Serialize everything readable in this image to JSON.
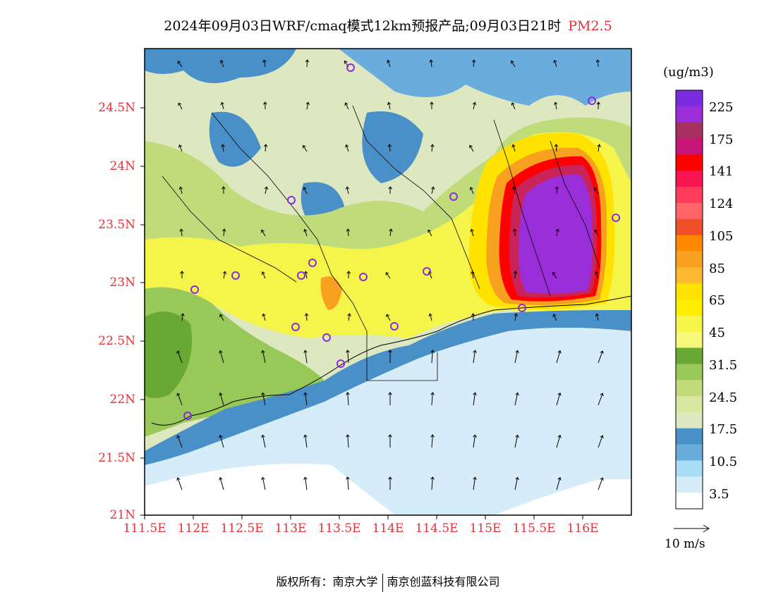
{
  "title": {
    "main": "2024年09月03日WRF/cmaq模式12km预报产品;09月03日21时",
    "variable": "PM2.5"
  },
  "map": {
    "lat_labels": [
      "24.5N",
      "24N",
      "23.5N",
      "23N",
      "22.5N",
      "22N",
      "21.5N",
      "21N"
    ],
    "lon_labels": [
      "111.5E",
      "112E",
      "112.5E",
      "113E",
      "113.5E",
      "114E",
      "114.5E",
      "115E",
      "115.5E",
      "116E"
    ],
    "lat_range": [
      21.0,
      25.0
    ],
    "lon_range": [
      111.5,
      116.5
    ],
    "colors": {
      "sea": "#d6ecf8",
      "coast_blue": "#4a90c8",
      "pale_green": "#dde8c0",
      "mid_green": "#c0dc7a",
      "dark_green": "#6aa834",
      "yellow": "#f4f44a",
      "gold": "#ffe200",
      "orange": "#f8a020",
      "red": "#ff0000",
      "crimson": "#c8245a",
      "purple": "#9a2ed8"
    }
  },
  "colorbar": {
    "unit": "(ug/m3)",
    "labels": [
      "225",
      "175",
      "141",
      "124",
      "105",
      "85",
      "65",
      "45",
      "31.5",
      "24.5",
      "17.5",
      "10.5",
      "3.5"
    ],
    "colors": [
      "#7b2be0",
      "#9a2ed8",
      "#a8305e",
      "#c81478",
      "#ff0000",
      "#f81450",
      "#ff3c5a",
      "#ff6466",
      "#f05028",
      "#ff8800",
      "#f8a020",
      "#fcb830",
      "#ffe200",
      "#ffee00",
      "#f4f44a",
      "#f8f878",
      "#6aa834",
      "#98c858",
      "#c0dc7a",
      "#d8e8a0",
      "#dde8c0",
      "#4a90c8",
      "#6aacdc",
      "#a8dcf4",
      "#d6ecf8",
      "#ffffff"
    ]
  },
  "reference_vector": {
    "label": "10 m/s"
  },
  "copyright": {
    "left": "版权所有：南京大学",
    "right": "南京创蓝科技有限公司"
  }
}
